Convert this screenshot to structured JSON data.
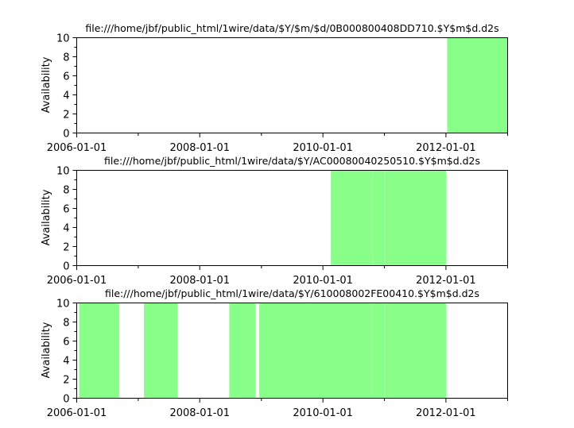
{
  "chart_data": [
    {
      "type": "bar",
      "title": "file:///home/jbf/public_html/1wire/data/$Y/$m/$d/0B000800408DD710.$Y$m$d.d2s",
      "ylabel": "Availability",
      "xlabel": "",
      "xlim": [
        "2006-01-01",
        "2013-01-01"
      ],
      "ylim": [
        0,
        10
      ],
      "x_ticks": [
        "2006-01-01",
        "2008-01-01",
        "2010-01-01",
        "2012-01-01"
      ],
      "y_ticks": [
        0,
        2,
        4,
        6,
        8,
        10
      ],
      "grid": false,
      "bar_color": "#88ff88",
      "intervals": [
        {
          "start": "2012-01-08",
          "end": "2013-01-01",
          "value": 10
        }
      ]
    },
    {
      "type": "bar",
      "title": "file:///home/jbf/public_html/1wire/data/$Y/AC00080040250510.$Y$m$d.d2s",
      "ylabel": "Availability",
      "xlabel": "",
      "xlim": [
        "2006-01-01",
        "2013-01-01"
      ],
      "ylim": [
        0,
        10
      ],
      "x_ticks": [
        "2006-01-01",
        "2008-01-01",
        "2010-01-01",
        "2012-01-01"
      ],
      "y_ticks": [
        0,
        2,
        4,
        6,
        8,
        10
      ],
      "grid": false,
      "bar_color": "#88ff88",
      "intervals": [
        {
          "start": "2010-02-17",
          "end": "2010-10-25",
          "value": 10
        },
        {
          "start": "2010-10-25",
          "end": "2011-01-04",
          "value": 10
        },
        {
          "start": "2011-01-04",
          "end": "2012-01-01",
          "value": 10
        }
      ]
    },
    {
      "type": "bar",
      "title": "file:///home/jbf/public_html/1wire/data/$Y/610008002FE00410.$Y$m$d.d2s",
      "ylabel": "Availability",
      "xlabel": "",
      "xlim": [
        "2006-01-01",
        "2013-01-01"
      ],
      "ylim": [
        0,
        10
      ],
      "x_ticks": [
        "2006-01-01",
        "2008-01-01",
        "2010-01-01",
        "2012-01-01"
      ],
      "y_ticks": [
        0,
        2,
        4,
        6,
        8,
        10
      ],
      "grid": false,
      "bar_color": "#88ff88",
      "intervals": [
        {
          "start": "2006-01-15",
          "end": "2006-09-10",
          "value": 10
        },
        {
          "start": "2007-02-04",
          "end": "2007-08-21",
          "value": 10
        },
        {
          "start": "2008-06-24",
          "end": "2008-11-25",
          "value": 10
        },
        {
          "start": "2008-12-19",
          "end": "2009-10-15",
          "value": 10
        },
        {
          "start": "2009-10-15",
          "end": "2010-10-25",
          "value": 10
        },
        {
          "start": "2010-10-25",
          "end": "2011-01-04",
          "value": 10
        },
        {
          "start": "2011-01-04",
          "end": "2012-01-01",
          "value": 10
        }
      ]
    }
  ]
}
